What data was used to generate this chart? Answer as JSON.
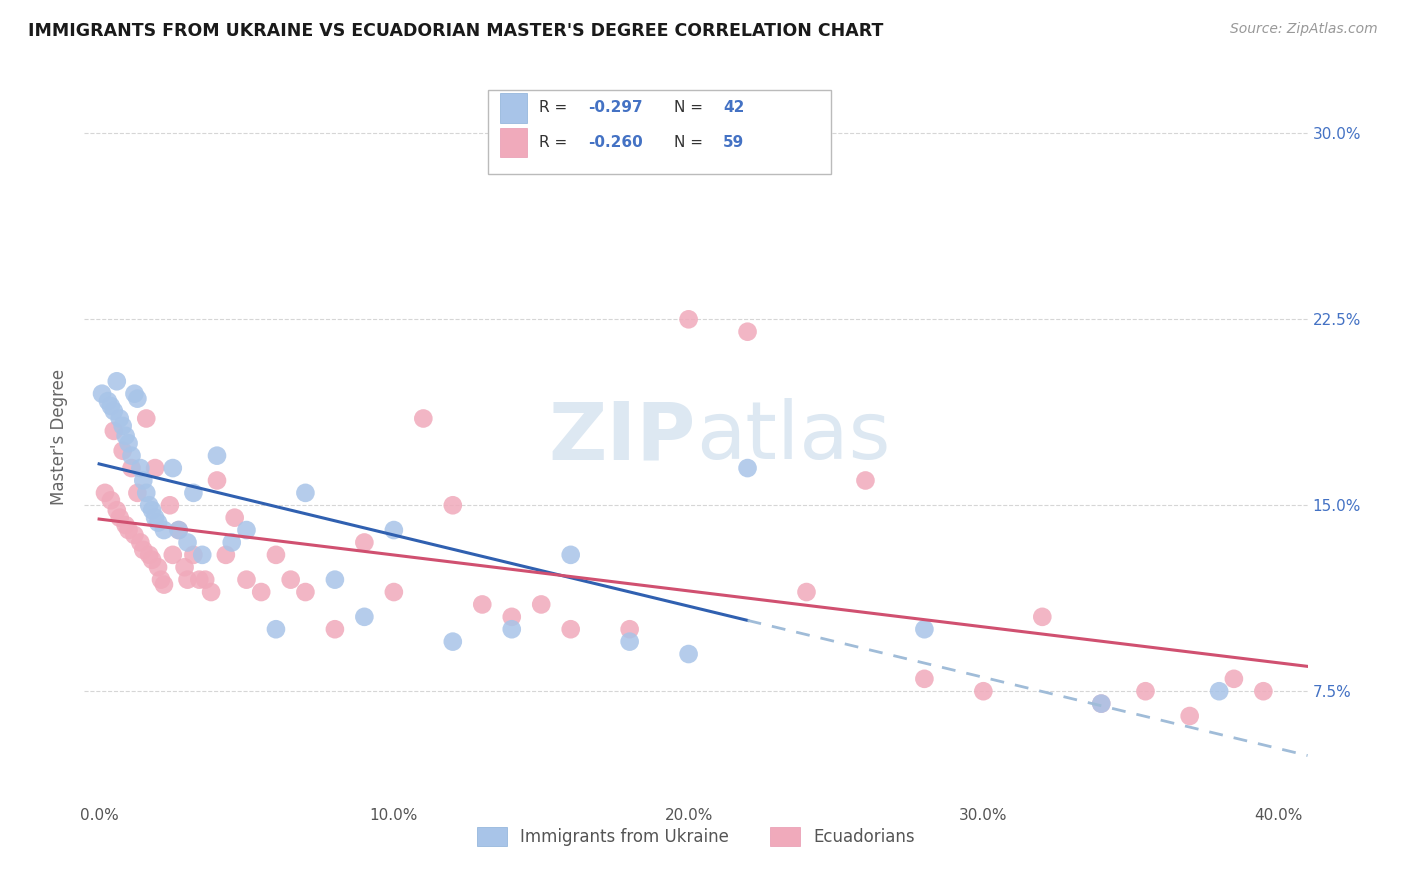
{
  "title": "IMMIGRANTS FROM UKRAINE VS ECUADORIAN MASTER'S DEGREE CORRELATION CHART",
  "source": "Source: ZipAtlas.com",
  "ylabel": "Master's Degree",
  "ytick_labels": [
    "7.5%",
    "15.0%",
    "22.5%",
    "30.0%"
  ],
  "ytick_values": [
    0.075,
    0.15,
    0.225,
    0.3
  ],
  "xtick_labels": [
    "0.0%",
    "10.0%",
    "20.0%",
    "30.0%",
    "40.0%"
  ],
  "xtick_values": [
    0.0,
    0.1,
    0.2,
    0.3,
    0.4
  ],
  "xlim": [
    -0.005,
    0.41
  ],
  "ylim": [
    0.03,
    0.325
  ],
  "legend_label1": "Immigrants from Ukraine",
  "legend_label2": "Ecuadorians",
  "r1": "-0.297",
  "n1": "42",
  "r2": "-0.260",
  "n2": "59",
  "color_blue": "#a8c4e8",
  "color_pink": "#f0aabb",
  "line_color_blue": "#3060b0",
  "line_color_pink": "#d05070",
  "dashed_color": "#a0bcd8",
  "ukraine_x": [
    0.001,
    0.003,
    0.004,
    0.005,
    0.006,
    0.007,
    0.008,
    0.009,
    0.01,
    0.011,
    0.012,
    0.013,
    0.014,
    0.015,
    0.016,
    0.017,
    0.018,
    0.019,
    0.02,
    0.022,
    0.025,
    0.027,
    0.03,
    0.032,
    0.035,
    0.04,
    0.045,
    0.05,
    0.06,
    0.07,
    0.08,
    0.09,
    0.1,
    0.12,
    0.14,
    0.16,
    0.18,
    0.2,
    0.22,
    0.28,
    0.34,
    0.38
  ],
  "ukraine_y": [
    0.195,
    0.192,
    0.19,
    0.188,
    0.2,
    0.185,
    0.182,
    0.178,
    0.175,
    0.17,
    0.195,
    0.193,
    0.165,
    0.16,
    0.155,
    0.15,
    0.148,
    0.145,
    0.143,
    0.14,
    0.165,
    0.14,
    0.135,
    0.155,
    0.13,
    0.17,
    0.135,
    0.14,
    0.1,
    0.155,
    0.12,
    0.105,
    0.14,
    0.095,
    0.1,
    0.13,
    0.095,
    0.09,
    0.165,
    0.1,
    0.07,
    0.075
  ],
  "ecuador_x": [
    0.002,
    0.004,
    0.005,
    0.006,
    0.007,
    0.008,
    0.009,
    0.01,
    0.011,
    0.012,
    0.013,
    0.014,
    0.015,
    0.016,
    0.017,
    0.018,
    0.019,
    0.02,
    0.021,
    0.022,
    0.024,
    0.025,
    0.027,
    0.029,
    0.03,
    0.032,
    0.034,
    0.036,
    0.038,
    0.04,
    0.043,
    0.046,
    0.05,
    0.055,
    0.06,
    0.065,
    0.07,
    0.08,
    0.09,
    0.1,
    0.11,
    0.12,
    0.13,
    0.14,
    0.15,
    0.16,
    0.18,
    0.2,
    0.22,
    0.24,
    0.26,
    0.28,
    0.3,
    0.32,
    0.34,
    0.355,
    0.37,
    0.385,
    0.395
  ],
  "ecuador_y": [
    0.155,
    0.152,
    0.18,
    0.148,
    0.145,
    0.172,
    0.142,
    0.14,
    0.165,
    0.138,
    0.155,
    0.135,
    0.132,
    0.185,
    0.13,
    0.128,
    0.165,
    0.125,
    0.12,
    0.118,
    0.15,
    0.13,
    0.14,
    0.125,
    0.12,
    0.13,
    0.12,
    0.12,
    0.115,
    0.16,
    0.13,
    0.145,
    0.12,
    0.115,
    0.13,
    0.12,
    0.115,
    0.1,
    0.135,
    0.115,
    0.185,
    0.15,
    0.11,
    0.105,
    0.11,
    0.1,
    0.1,
    0.225,
    0.22,
    0.115,
    0.16,
    0.08,
    0.075,
    0.105,
    0.07,
    0.075,
    0.065,
    0.08,
    0.075
  ],
  "background_color": "#ffffff",
  "grid_color": "#cccccc",
  "watermark_color": "#dde8f2"
}
